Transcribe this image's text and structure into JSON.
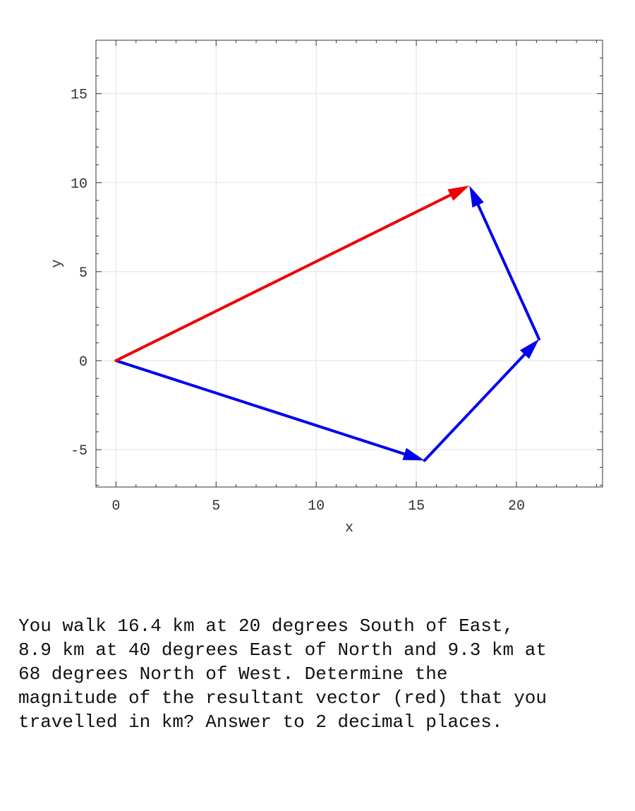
{
  "chart_data": {
    "type": "line",
    "title": "",
    "xlabel": "x",
    "ylabel": "y",
    "xlim": [
      -1,
      24.3
    ],
    "ylim": [
      -7.1,
      18
    ],
    "grid": true,
    "x_ticks": [
      0,
      5,
      10,
      15,
      20
    ],
    "y_ticks": [
      -5,
      0,
      5,
      10,
      15
    ],
    "x_tick_labels": [
      "0",
      "5",
      "10",
      "15",
      "20"
    ],
    "y_tick_labels": [
      "-5",
      "0",
      "5",
      "10",
      "15"
    ],
    "series": [
      {
        "color": "#0000ee",
        "kind": "vectors",
        "segments": [
          {
            "from": [
              0,
              0
            ],
            "to": [
              15.41,
              -5.61
            ]
          },
          {
            "from": [
              15.41,
              -5.61
            ],
            "to": [
              21.13,
              1.21
            ]
          },
          {
            "from": [
              21.13,
              1.21
            ],
            "to": [
              17.65,
              9.83
            ]
          }
        ]
      },
      {
        "color": "#ee0000",
        "kind": "vectors",
        "segments": [
          {
            "from": [
              0,
              0
            ],
            "to": [
              17.65,
              9.83
            ]
          }
        ]
      }
    ]
  },
  "question": {
    "text": "You walk 16.4 km at 20 degrees South of East,\n8.9 km at 40 degrees East of North and 9.3 km at\n68 degrees North of West.  Determine the\nmagnitude of the resultant vector (red) that you\ntravelled in km? Answer to 2 decimal places."
  }
}
